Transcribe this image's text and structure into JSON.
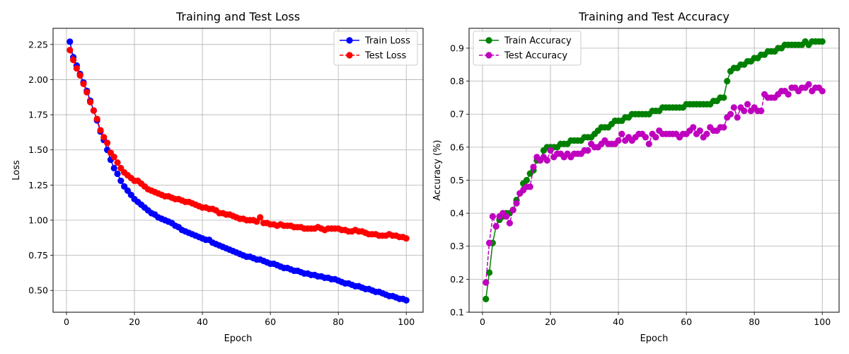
{
  "chart_data": [
    {
      "type": "line",
      "title": "Training and Test Loss",
      "xlabel": "Epoch",
      "ylabel": "Loss",
      "xlim": [
        -3.95,
        104.95
      ],
      "ylim": [
        0.345,
        2.365
      ],
      "xticks": [
        0,
        20,
        40,
        60,
        80,
        100
      ],
      "yticks": [
        0.5,
        0.75,
        1.0,
        1.25,
        1.5,
        1.75,
        2.0,
        2.25
      ],
      "xtick_labels": [
        "0",
        "20",
        "40",
        "60",
        "80",
        "100"
      ],
      "ytick_labels": [
        "0.50",
        "0.75",
        "1.00",
        "1.25",
        "1.50",
        "1.75",
        "2.00",
        "2.25"
      ],
      "grid": true,
      "legend_position": "top-right",
      "x": [
        1,
        2,
        3,
        4,
        5,
        6,
        7,
        8,
        9,
        10,
        11,
        12,
        13,
        14,
        15,
        16,
        17,
        18,
        19,
        20,
        21,
        22,
        23,
        24,
        25,
        26,
        27,
        28,
        29,
        30,
        31,
        32,
        33,
        34,
        35,
        36,
        37,
        38,
        39,
        40,
        41,
        42,
        43,
        44,
        45,
        46,
        47,
        48,
        49,
        50,
        51,
        52,
        53,
        54,
        55,
        56,
        57,
        58,
        59,
        60,
        61,
        62,
        63,
        64,
        65,
        66,
        67,
        68,
        69,
        70,
        71,
        72,
        73,
        74,
        75,
        76,
        77,
        78,
        79,
        80,
        81,
        82,
        83,
        84,
        85,
        86,
        87,
        88,
        89,
        90,
        91,
        92,
        93,
        94,
        95,
        96,
        97,
        98,
        99,
        100
      ],
      "series": [
        {
          "name": "Train Loss",
          "color": "#0000ff",
          "linestyle": "solid",
          "values": [
            2.27,
            2.16,
            2.1,
            2.04,
            1.98,
            1.92,
            1.85,
            1.78,
            1.71,
            1.63,
            1.57,
            1.5,
            1.43,
            1.37,
            1.33,
            1.28,
            1.24,
            1.21,
            1.18,
            1.15,
            1.13,
            1.11,
            1.09,
            1.07,
            1.05,
            1.04,
            1.02,
            1.01,
            1.0,
            0.99,
            0.98,
            0.96,
            0.95,
            0.93,
            0.92,
            0.91,
            0.9,
            0.89,
            0.88,
            0.87,
            0.86,
            0.86,
            0.84,
            0.83,
            0.82,
            0.81,
            0.8,
            0.79,
            0.78,
            0.77,
            0.76,
            0.75,
            0.74,
            0.74,
            0.73,
            0.72,
            0.72,
            0.71,
            0.7,
            0.69,
            0.69,
            0.68,
            0.67,
            0.66,
            0.66,
            0.65,
            0.64,
            0.64,
            0.63,
            0.62,
            0.62,
            0.61,
            0.61,
            0.6,
            0.6,
            0.59,
            0.59,
            0.58,
            0.58,
            0.57,
            0.56,
            0.55,
            0.55,
            0.54,
            0.53,
            0.53,
            0.52,
            0.51,
            0.51,
            0.5,
            0.49,
            0.49,
            0.48,
            0.47,
            0.46,
            0.46,
            0.45,
            0.44,
            0.44,
            0.43
          ]
        },
        {
          "name": "Test Loss",
          "color": "#ff0000",
          "linestyle": "dashed",
          "values": [
            2.21,
            2.14,
            2.08,
            2.03,
            1.97,
            1.91,
            1.84,
            1.78,
            1.72,
            1.64,
            1.59,
            1.55,
            1.48,
            1.45,
            1.41,
            1.37,
            1.34,
            1.32,
            1.3,
            1.28,
            1.28,
            1.26,
            1.24,
            1.22,
            1.21,
            1.2,
            1.19,
            1.18,
            1.17,
            1.17,
            1.16,
            1.15,
            1.15,
            1.14,
            1.13,
            1.13,
            1.12,
            1.11,
            1.1,
            1.09,
            1.09,
            1.08,
            1.08,
            1.07,
            1.05,
            1.05,
            1.04,
            1.04,
            1.03,
            1.02,
            1.01,
            1.01,
            1.0,
            1.0,
            1.0,
            0.99,
            1.02,
            0.98,
            0.98,
            0.97,
            0.97,
            0.96,
            0.97,
            0.96,
            0.96,
            0.96,
            0.95,
            0.95,
            0.95,
            0.94,
            0.94,
            0.94,
            0.94,
            0.95,
            0.94,
            0.93,
            0.94,
            0.94,
            0.94,
            0.94,
            0.93,
            0.93,
            0.92,
            0.92,
            0.93,
            0.92,
            0.92,
            0.91,
            0.9,
            0.9,
            0.9,
            0.89,
            0.89,
            0.89,
            0.9,
            0.89,
            0.89,
            0.88,
            0.88,
            0.87
          ]
        }
      ]
    },
    {
      "type": "line",
      "title": "Training and Test Accuracy",
      "xlabel": "Epoch",
      "ylabel": "Accuracy (%)",
      "xlim": [
        -3.95,
        104.95
      ],
      "ylim": [
        0.1,
        0.96
      ],
      "xticks": [
        0,
        20,
        40,
        60,
        80,
        100
      ],
      "yticks": [
        0.1,
        0.2,
        0.3,
        0.4,
        0.5,
        0.6,
        0.7,
        0.8,
        0.9
      ],
      "xtick_labels": [
        "0",
        "20",
        "40",
        "60",
        "80",
        "100"
      ],
      "ytick_labels": [
        "0.1",
        "0.2",
        "0.3",
        "0.4",
        "0.5",
        "0.6",
        "0.7",
        "0.8",
        "0.9"
      ],
      "grid": true,
      "legend_position": "top-left",
      "x": [
        1,
        2,
        3,
        4,
        5,
        6,
        7,
        8,
        9,
        10,
        11,
        12,
        13,
        14,
        15,
        16,
        17,
        18,
        19,
        20,
        21,
        22,
        23,
        24,
        25,
        26,
        27,
        28,
        29,
        30,
        31,
        32,
        33,
        34,
        35,
        36,
        37,
        38,
        39,
        40,
        41,
        42,
        43,
        44,
        45,
        46,
        47,
        48,
        49,
        50,
        51,
        52,
        53,
        54,
        55,
        56,
        57,
        58,
        59,
        60,
        61,
        62,
        63,
        64,
        65,
        66,
        67,
        68,
        69,
        70,
        71,
        72,
        73,
        74,
        75,
        76,
        77,
        78,
        79,
        80,
        81,
        82,
        83,
        84,
        85,
        86,
        87,
        88,
        89,
        90,
        91,
        92,
        93,
        94,
        95,
        96,
        97,
        98,
        99,
        100
      ],
      "series": [
        {
          "name": "Train Accuracy",
          "color": "#008000",
          "linestyle": "solid",
          "values": [
            0.14,
            0.22,
            0.31,
            0.36,
            0.38,
            0.39,
            0.4,
            0.4,
            0.41,
            0.44,
            0.46,
            0.49,
            0.5,
            0.52,
            0.53,
            0.56,
            0.56,
            0.59,
            0.6,
            0.6,
            0.6,
            0.6,
            0.61,
            0.61,
            0.61,
            0.62,
            0.62,
            0.62,
            0.62,
            0.63,
            0.63,
            0.63,
            0.64,
            0.65,
            0.66,
            0.66,
            0.66,
            0.67,
            0.68,
            0.68,
            0.68,
            0.69,
            0.69,
            0.7,
            0.7,
            0.7,
            0.7,
            0.7,
            0.7,
            0.71,
            0.71,
            0.71,
            0.72,
            0.72,
            0.72,
            0.72,
            0.72,
            0.72,
            0.72,
            0.73,
            0.73,
            0.73,
            0.73,
            0.73,
            0.73,
            0.73,
            0.73,
            0.74,
            0.74,
            0.75,
            0.75,
            0.8,
            0.83,
            0.84,
            0.84,
            0.85,
            0.85,
            0.86,
            0.86,
            0.87,
            0.87,
            0.88,
            0.88,
            0.89,
            0.89,
            0.89,
            0.9,
            0.9,
            0.91,
            0.91,
            0.91,
            0.91,
            0.91,
            0.91,
            0.92,
            0.91,
            0.92,
            0.92,
            0.92,
            0.92
          ]
        },
        {
          "name": "Test Accuracy",
          "color": "#bf00bf",
          "linestyle": "dashed",
          "values": [
            0.19,
            0.31,
            0.39,
            0.36,
            0.39,
            0.4,
            0.39,
            0.37,
            0.41,
            0.43,
            0.46,
            0.47,
            0.48,
            0.48,
            0.54,
            0.57,
            0.56,
            0.57,
            0.56,
            0.59,
            0.57,
            0.58,
            0.58,
            0.57,
            0.58,
            0.57,
            0.58,
            0.58,
            0.58,
            0.59,
            0.59,
            0.61,
            0.6,
            0.6,
            0.61,
            0.62,
            0.61,
            0.61,
            0.61,
            0.62,
            0.64,
            0.62,
            0.63,
            0.62,
            0.63,
            0.64,
            0.64,
            0.63,
            0.61,
            0.64,
            0.63,
            0.65,
            0.64,
            0.64,
            0.64,
            0.64,
            0.64,
            0.63,
            0.64,
            0.64,
            0.65,
            0.66,
            0.64,
            0.65,
            0.63,
            0.64,
            0.66,
            0.65,
            0.65,
            0.66,
            0.66,
            0.69,
            0.7,
            0.72,
            0.69,
            0.72,
            0.71,
            0.73,
            0.71,
            0.72,
            0.71,
            0.71,
            0.76,
            0.75,
            0.75,
            0.75,
            0.76,
            0.77,
            0.77,
            0.76,
            0.78,
            0.78,
            0.77,
            0.78,
            0.78,
            0.79,
            0.77,
            0.78,
            0.78,
            0.77
          ]
        }
      ]
    }
  ]
}
